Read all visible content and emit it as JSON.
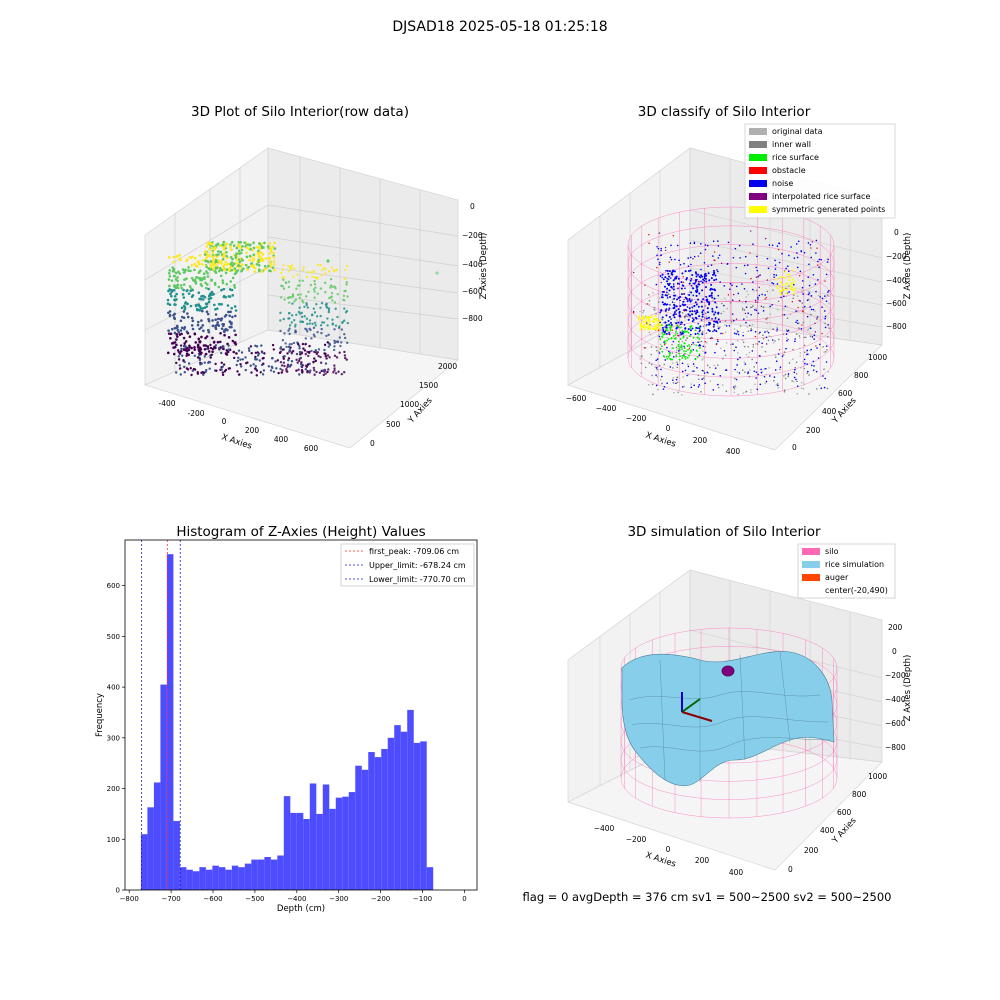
{
  "suptitle": "DJSAD18 2025-05-18 01:25:18",
  "status_line": "flag = 0     avgDepth = 376 cm  sv1 = 500~2500  sv2 = 500~2500",
  "colors": {
    "hist_bar": "#4d4dff",
    "first_peak": "#ff2a2a",
    "limits": "#1a1acc",
    "silo": "#ff69b4",
    "rice_sim": "#87ceeb",
    "auger": "#ff4500",
    "original": "#b0b0b0",
    "inner_wall": "#808080",
    "rice_surface": "#00ee00",
    "obstacle": "#ff0000",
    "noise": "#0000ee",
    "interpolated": "#800080",
    "symmetric": "#ffff00"
  },
  "chart_data": [
    {
      "type": "scatter",
      "title": "3D Plot of Silo Interior(row data)",
      "xlabel": "X Axies",
      "ylabel": "Y Axies",
      "zlabel": "Z Axies (Depth)",
      "x_ticks": [
        "-400",
        "-200",
        "0",
        "200",
        "400",
        "600"
      ],
      "y_ticks": [
        "0",
        "500",
        "1000",
        "1500",
        "2000"
      ],
      "z_ticks": [
        "0",
        "−200",
        "−400",
        "−600",
        "−800"
      ]
    },
    {
      "type": "scatter",
      "title": "3D classify of Silo Interior",
      "xlabel": "X Axies",
      "ylabel": "Y Axies",
      "zlabel": "Z Axies (Depth)",
      "x_ticks": [
        "−600",
        "−400",
        "−200",
        "0",
        "200",
        "400"
      ],
      "y_ticks": [
        "0",
        "200",
        "400",
        "600",
        "800",
        "1000"
      ],
      "z_ticks": [
        "0",
        "−200",
        "−400",
        "−600",
        "−800"
      ],
      "legend": [
        {
          "label": "original data",
          "color": "#b0b0b0"
        },
        {
          "label": "inner wall",
          "color": "#808080"
        },
        {
          "label": "rice surface",
          "color": "#00ee00"
        },
        {
          "label": "obstacle",
          "color": "#ff0000"
        },
        {
          "label": "noise",
          "color": "#0000ee"
        },
        {
          "label": "interpolated rice surface",
          "color": "#800080"
        },
        {
          "label": "symmetric generated points",
          "color": "#ffff00"
        }
      ]
    },
    {
      "type": "bar",
      "title": "Histogram of Z-Axies (Height) Values",
      "xlabel": "Depth (cm)",
      "ylabel": "Frequency",
      "xlim": [
        -810,
        30
      ],
      "ylim": [
        0,
        690
      ],
      "x_ticks": [
        -800,
        -700,
        -600,
        -500,
        -400,
        -300,
        -200,
        -100,
        0
      ],
      "x_tick_labels": [
        "−800",
        "−700",
        "−600",
        "−500",
        "−400",
        "−300",
        "−200",
        "−100",
        "0"
      ],
      "y_ticks": [
        0,
        100,
        200,
        300,
        400,
        500,
        600
      ],
      "bin_start": -772,
      "bin_width": 15.5,
      "values": [
        110,
        163,
        212,
        405,
        662,
        136,
        45,
        40,
        37,
        45,
        40,
        48,
        45,
        40,
        48,
        45,
        52,
        60,
        60,
        65,
        60,
        68,
        185,
        152,
        152,
        140,
        210,
        150,
        208,
        160,
        182,
        184,
        193,
        245,
        237,
        272,
        262,
        278,
        300,
        325,
        312,
        355,
        290,
        293,
        45
      ],
      "vlines": [
        {
          "x": -709.06,
          "label": "first_peak: -709.06 cm",
          "color": "#ff2a2a"
        },
        {
          "x": -678.24,
          "label": "Upper_limit: -678.24 cm",
          "color": "#1a1acc"
        },
        {
          "x": -770.7,
          "label": "Lower_limit: -770.70 cm",
          "color": "#1a1acc"
        }
      ]
    },
    {
      "type": "area",
      "title": "3D simulation of Silo Interior",
      "xlabel": "X Axies",
      "ylabel": "Y Axies",
      "zlabel": "Z Axies (Depth)",
      "x_ticks": [
        "−400",
        "−200",
        "0",
        "200",
        "400"
      ],
      "y_ticks": [
        "0",
        "200",
        "400",
        "600",
        "800",
        "1000"
      ],
      "z_ticks": [
        "200",
        "0",
        "−200",
        "−400",
        "−600",
        "−800"
      ],
      "legend": [
        {
          "label": "silo",
          "color": "#ff69b4"
        },
        {
          "label": "rice simulation",
          "color": "#87ceeb"
        },
        {
          "label": "auger",
          "color": "#ff4500"
        },
        {
          "label": "center(-20,490)",
          "color": ""
        }
      ]
    }
  ]
}
